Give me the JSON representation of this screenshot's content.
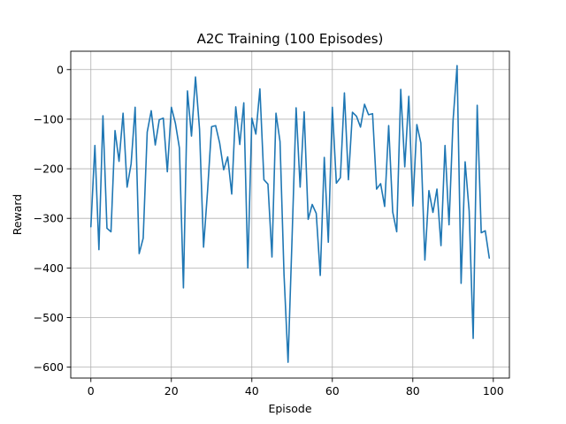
{
  "chart_data": {
    "type": "line",
    "title": "A2C Training (100 Episodes)",
    "xlabel": "Episode",
    "ylabel": "Reward",
    "xlim": [
      -5,
      104
    ],
    "ylim": [
      -622,
      37
    ],
    "xticks": [
      0,
      20,
      40,
      60,
      80,
      100
    ],
    "yticks": [
      0,
      -100,
      -200,
      -300,
      -400,
      -500,
      -600
    ],
    "xtick_labels": [
      "0",
      "20",
      "40",
      "60",
      "80",
      "100"
    ],
    "ytick_labels": [
      "0",
      "−100",
      "−200",
      "−300",
      "−400",
      "−500",
      "−600"
    ],
    "grid": true,
    "line_color": "#1f77b4",
    "x": [
      0,
      1,
      2,
      3,
      4,
      5,
      6,
      7,
      8,
      9,
      10,
      11,
      12,
      13,
      14,
      15,
      16,
      17,
      18,
      19,
      20,
      21,
      22,
      23,
      24,
      25,
      26,
      27,
      28,
      29,
      30,
      31,
      32,
      33,
      34,
      35,
      36,
      37,
      38,
      39,
      40,
      41,
      42,
      43,
      44,
      45,
      46,
      47,
      48,
      49,
      50,
      51,
      52,
      53,
      54,
      55,
      56,
      57,
      58,
      59,
      60,
      61,
      62,
      63,
      64,
      65,
      66,
      67,
      68,
      69,
      70,
      71,
      72,
      73,
      74,
      75,
      76,
      77,
      78,
      79,
      80,
      81,
      82,
      83,
      84,
      85,
      86,
      87,
      88,
      89,
      90,
      91,
      92,
      93,
      94,
      95,
      96,
      97,
      98,
      99
    ],
    "series": [
      {
        "values": [
          -317,
          -153,
          -363,
          -93,
          -320,
          -327,
          -123,
          -185,
          -88,
          -237,
          -190,
          -76,
          -371,
          -340,
          -126,
          -83,
          -152,
          -101,
          -98,
          -206,
          -76,
          -108,
          -158,
          -440,
          -43,
          -134,
          -15,
          -120,
          -358,
          -244,
          -115,
          -113,
          -148,
          -202,
          -176,
          -251,
          -75,
          -151,
          -67,
          -400,
          -98,
          -130,
          -39,
          -222,
          -231,
          -378,
          -88,
          -145,
          -414,
          -590,
          -338,
          -77,
          -237,
          -85,
          -302,
          -272,
          -290,
          -415,
          -177,
          -348,
          -76,
          -229,
          -218,
          -47,
          -222,
          -86,
          -94,
          -116,
          -70,
          -91,
          -89,
          -241,
          -230,
          -276,
          -113,
          -287,
          -327,
          -40,
          -196,
          -54,
          -275,
          -111,
          -148,
          -384,
          -244,
          -288,
          -241,
          -355,
          -153,
          -313,
          -103,
          8,
          -431,
          -186,
          -285,
          -542,
          -72,
          -329,
          -325,
          -380
        ]
      }
    ]
  }
}
